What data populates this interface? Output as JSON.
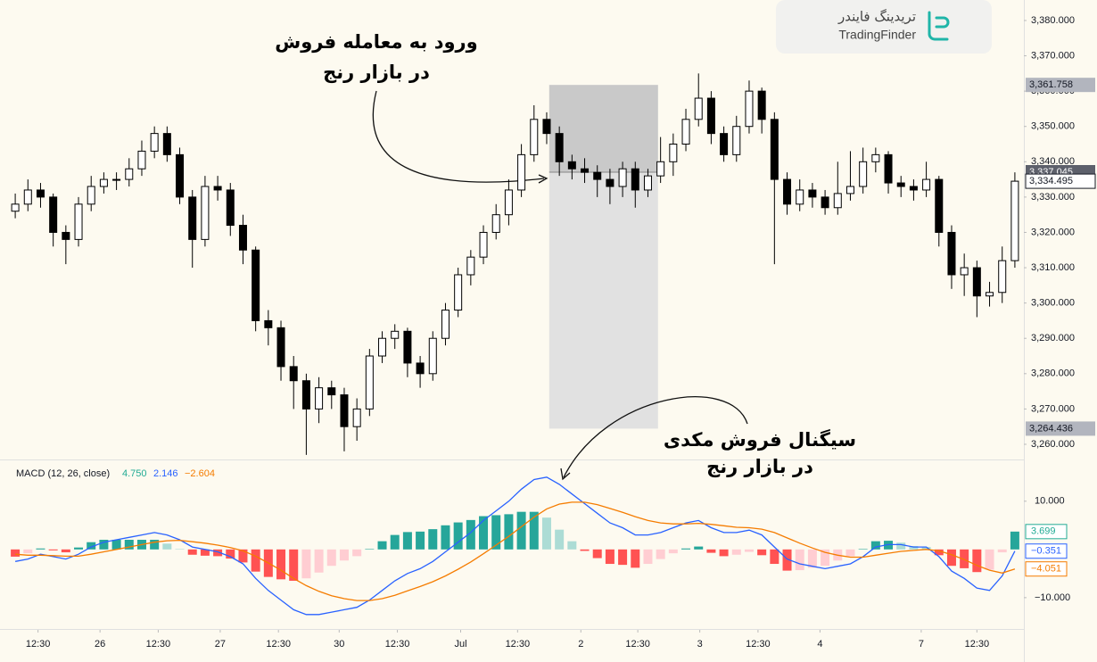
{
  "chart_data": [
    {
      "type": "candlestick",
      "open": [
        3326,
        3328,
        3332,
        3330,
        3320,
        3318,
        3328,
        3333,
        3335,
        3335,
        3338,
        3343,
        3348,
        3342,
        3330,
        3318,
        3333,
        3332,
        3322,
        3315,
        3295,
        3293,
        3282,
        3278,
        3270,
        3276,
        3274,
        3265,
        3270,
        3285,
        3290,
        3292,
        3283,
        3280,
        3290,
        3298,
        3308,
        3313,
        3320,
        3325,
        3332,
        3342,
        3352,
        3348,
        3340,
        3338,
        3337,
        3335,
        3333,
        3338,
        3332,
        3336,
        3340,
        3345,
        3352,
        3358,
        3348,
        3342,
        3350,
        3360,
        3352,
        3335,
        3328,
        3332,
        3330,
        3327,
        3331,
        3333,
        3340,
        3342,
        3334,
        3333,
        3332,
        3335,
        3320,
        3308,
        3310,
        3302,
        3303,
        3312
      ],
      "high": [
        3331,
        3335,
        3334,
        3331,
        3322,
        3330,
        3336,
        3337,
        3337,
        3341,
        3346,
        3350,
        3350,
        3344,
        3332,
        3336,
        3336,
        3334,
        3325,
        3316,
        3298,
        3295,
        3285,
        3280,
        3279,
        3278,
        3276,
        3273,
        3287,
        3292,
        3294,
        3293,
        3285,
        3292,
        3300,
        3310,
        3315,
        3322,
        3328,
        3335,
        3345,
        3356,
        3354,
        3350,
        3342,
        3341,
        3339,
        3338,
        3340,
        3340,
        3338,
        3347,
        3348,
        3355,
        3365,
        3360,
        3350,
        3353,
        3363,
        3361,
        3354,
        3337,
        3335,
        3334,
        3332,
        3340,
        3343,
        3344,
        3344,
        3343,
        3336,
        3335,
        3340,
        3336,
        3322,
        3314,
        3312,
        3306,
        3316,
        3337
      ],
      "low": [
        3324,
        3326,
        3327,
        3316,
        3311,
        3316,
        3326,
        3331,
        3332,
        3333,
        3336,
        3341,
        3340,
        3328,
        3310,
        3316,
        3329,
        3319,
        3311,
        3292,
        3288,
        3278,
        3270,
        3257,
        3266,
        3270,
        3258,
        3261,
        3268,
        3283,
        3287,
        3279,
        3276,
        3278,
        3288,
        3296,
        3305,
        3311,
        3318,
        3322,
        3330,
        3340,
        3345,
        3336,
        3335,
        3334,
        3330,
        3328,
        3330,
        3327,
        3330,
        3334,
        3336,
        3343,
        3350,
        3345,
        3340,
        3340,
        3348,
        3348,
        3311,
        3325,
        3326,
        3327,
        3325,
        3325,
        3329,
        3331,
        3337,
        3331,
        3330,
        3329,
        3330,
        3316,
        3304,
        3302,
        3296,
        3299,
        3300,
        3310
      ],
      "close": [
        3328,
        3332,
        3330,
        3320,
        3318,
        3328,
        3333,
        3335,
        3335,
        3338,
        3343,
        3348,
        3342,
        3330,
        3318,
        3333,
        3332,
        3322,
        3315,
        3295,
        3293,
        3282,
        3278,
        3270,
        3276,
        3274,
        3265,
        3270,
        3285,
        3290,
        3292,
        3283,
        3280,
        3290,
        3298,
        3308,
        3313,
        3320,
        3325,
        3332,
        3342,
        3352,
        3348,
        3340,
        3338,
        3337,
        3335,
        3333,
        3338,
        3332,
        3336,
        3340,
        3345,
        3352,
        3358,
        3348,
        3342,
        3350,
        3360,
        3352,
        3335,
        3328,
        3332,
        3330,
        3327,
        3331,
        3333,
        3340,
        3342,
        3334,
        3333,
        3332,
        3335,
        3320,
        3308,
        3310,
        3302,
        3303,
        3312,
        3334.495
      ],
      "up_color": "#ffffff",
      "down_color": "#000000",
      "border_color": "#000000",
      "xlim": [
        0,
        80
      ],
      "ylim": [
        3255.7,
        3385.8
      ],
      "yticks": [
        {
          "value": 3260,
          "label": "3,260.000"
        },
        {
          "value": 3270,
          "label": "3,270.000"
        },
        {
          "value": 3280,
          "label": "3,280.000"
        },
        {
          "value": 3290,
          "label": "3,290.000"
        },
        {
          "value": 3300,
          "label": "3,300.000"
        },
        {
          "value": 3310,
          "label": "3,310.000"
        },
        {
          "value": 3320,
          "label": "3,320.000"
        },
        {
          "value": 3330,
          "label": "3,330.000"
        },
        {
          "value": 3340,
          "label": "3,340.000"
        },
        {
          "value": 3350,
          "label": "3,350.000"
        },
        {
          "value": 3360,
          "label": "3,360.000"
        },
        {
          "value": 3370,
          "label": "3,370.000"
        },
        {
          "value": 3380,
          "label": "3,380.000"
        }
      ],
      "last_price": {
        "value": 3334.495,
        "label": "3,334.495"
      },
      "zone": {
        "xrange": [
          42.7,
          51.3
        ],
        "top": {
          "value": 3361.758,
          "label": "3,361.758"
        },
        "entry": {
          "value": 3337.045,
          "label": "3,337.045"
        },
        "bottom": {
          "value": 3264.436,
          "label": "3,264.436"
        },
        "risk_color": "#c9c9c9",
        "reward_color": "#e1e1e1"
      },
      "annotations": [
        {
          "lines": [
            "ورود به معامله فروش",
            "در بازار رنج"
          ]
        },
        {
          "lines": [
            "سیگنال فروش مکدی",
            "در بازار رنج"
          ]
        }
      ]
    },
    {
      "type": "macd",
      "title": "MACD (12, 26, close)",
      "xlim": [
        0,
        80
      ],
      "ylim": [
        -16.5,
        18.1
      ],
      "yticks": [
        {
          "value": 10,
          "label": "10.000"
        },
        {
          "value": -10,
          "label": "−10.000"
        }
      ],
      "xticks": [
        {
          "value": 2.3,
          "label": "12:30"
        },
        {
          "value": 7.2,
          "label": "26"
        },
        {
          "value": 11.8,
          "label": "12:30"
        },
        {
          "value": 16.7,
          "label": "27"
        },
        {
          "value": 21.3,
          "label": "12:30"
        },
        {
          "value": 26.1,
          "label": "30"
        },
        {
          "value": 30.7,
          "label": "12:30"
        },
        {
          "value": 35.7,
          "label": "Jul"
        },
        {
          "value": 40.2,
          "label": "12:30"
        },
        {
          "value": 45.2,
          "label": "2"
        },
        {
          "value": 49.7,
          "label": "12:30"
        },
        {
          "value": 54.6,
          "label": "3"
        },
        {
          "value": 59.2,
          "label": "12:30"
        },
        {
          "value": 64.1,
          "label": "4"
        },
        {
          "value": 72.1,
          "label": "7"
        },
        {
          "value": 76.5,
          "label": "12:30"
        }
      ],
      "series": [
        {
          "kind": "histogram",
          "color": "#22ab94",
          "colors": [
            "#26a69a",
            "#acdcd5",
            "#ff5252",
            "#ffcdd2"
          ],
          "legend_label": "4.750",
          "last_label": "3.699",
          "values": [
            -1.5,
            -0.8,
            0.2,
            -0.2,
            -0.6,
            0.4,
            1.5,
            2.0,
            2.0,
            2.0,
            2.0,
            2.0,
            1.2,
            0.1,
            -1.1,
            -1.3,
            -1.4,
            -1.9,
            -2.7,
            -4.6,
            -5.7,
            -6.2,
            -6.5,
            -6.0,
            -4.8,
            -3.4,
            -2.3,
            -1.4,
            0.1,
            1.7,
            3.0,
            3.6,
            3.7,
            4.2,
            5.0,
            5.6,
            6.1,
            6.9,
            7.1,
            7.3,
            7.8,
            7.8,
            6.6,
            4.1,
            1.7,
            -0.3,
            -1.8,
            -3.0,
            -3.2,
            -3.8,
            -3.0,
            -2.0,
            -0.8,
            0.2,
            0.6,
            -0.7,
            -1.4,
            -1.1,
            -0.5,
            -1.2,
            -3.0,
            -4.4,
            -4.3,
            -3.8,
            -3.4,
            -2.3,
            -1.4,
            0.1,
            1.7,
            1.8,
            1.4,
            0.7,
            0.5,
            -1.2,
            -3.4,
            -3.9,
            -4.7,
            -4.2,
            -0.6,
            3.699
          ]
        },
        {
          "kind": "line",
          "color": "#2962ff",
          "legend_label": "2.146",
          "last_label": "−0.351",
          "values": [
            -2.5,
            -2.0,
            -1.0,
            -1.5,
            -2.0,
            -1.0,
            0.5,
            1.5,
            2.0,
            2.5,
            3.0,
            3.5,
            3.0,
            2.0,
            0.5,
            0.0,
            -0.5,
            -1.5,
            -3.0,
            -6.0,
            -8.5,
            -10.5,
            -12.5,
            -13.5,
            -13.5,
            -13.0,
            -12.5,
            -12.0,
            -10.5,
            -8.5,
            -6.5,
            -5.0,
            -4.0,
            -2.5,
            -0.5,
            1.5,
            3.5,
            6.0,
            8.0,
            10.0,
            12.5,
            14.5,
            15.0,
            13.5,
            11.5,
            9.5,
            7.5,
            5.5,
            4.5,
            3.0,
            3.0,
            3.5,
            4.5,
            5.5,
            6.0,
            4.5,
            3.5,
            3.5,
            4.0,
            3.0,
            0.5,
            -2.0,
            -3.0,
            -3.5,
            -4.0,
            -3.5,
            -3.0,
            -1.5,
            0.5,
            1.0,
            1.0,
            0.5,
            0.5,
            -1.5,
            -4.5,
            -6.0,
            -8.0,
            -8.5,
            -5.5,
            -0.351
          ]
        },
        {
          "kind": "line",
          "color": "#f57c00",
          "legend_label": "−2.604",
          "last_label": "−4.051",
          "values": [
            -1.0,
            -1.2,
            -1.2,
            -1.3,
            -1.4,
            -1.4,
            -1.0,
            -0.5,
            0.0,
            0.5,
            1.0,
            1.5,
            1.8,
            1.9,
            1.6,
            1.3,
            0.9,
            0.4,
            -0.3,
            -1.4,
            -2.8,
            -4.3,
            -6.0,
            -7.5,
            -8.7,
            -9.6,
            -10.2,
            -10.6,
            -10.6,
            -10.2,
            -9.5,
            -8.6,
            -7.7,
            -6.7,
            -5.5,
            -4.1,
            -2.6,
            -0.9,
            0.9,
            2.7,
            4.7,
            6.7,
            8.4,
            9.4,
            9.8,
            9.8,
            9.3,
            8.5,
            7.7,
            6.8,
            6.0,
            5.5,
            5.3,
            5.3,
            5.4,
            5.2,
            4.9,
            4.6,
            4.5,
            4.2,
            3.5,
            2.4,
            1.3,
            0.3,
            -0.6,
            -1.2,
            -1.6,
            -1.6,
            -1.2,
            -0.8,
            -0.4,
            -0.2,
            0.0,
            -0.3,
            -1.1,
            -2.1,
            -3.3,
            -4.3,
            -4.9,
            -4.051
          ]
        }
      ]
    }
  ],
  "logo": {
    "title": "تریدینگ فایندر",
    "subtitle": "TradingFinder"
  }
}
